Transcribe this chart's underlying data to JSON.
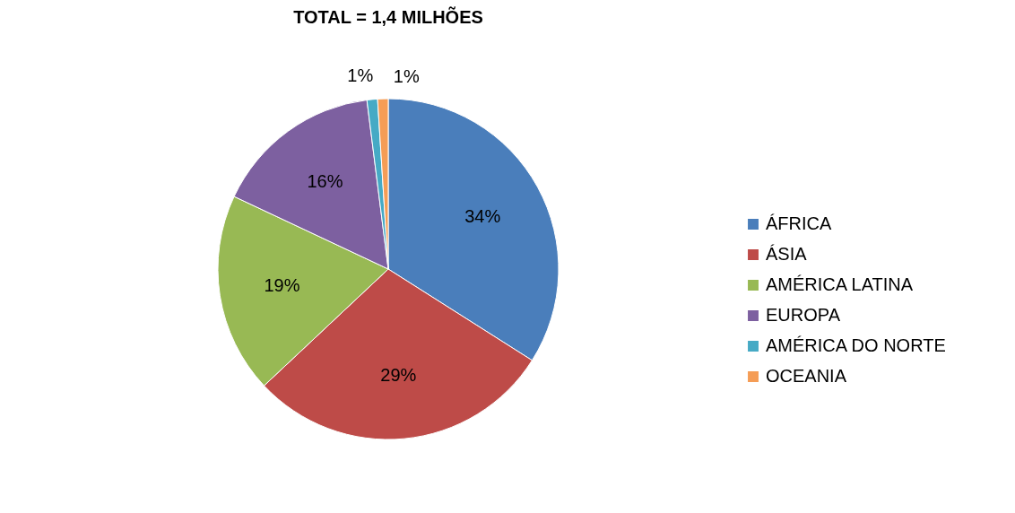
{
  "chart_data": {
    "type": "pie",
    "title": "TOTAL = 1,4 MILHÕES",
    "categories": [
      "ÁFRICA",
      "ÁSIA",
      "AMÉRICA LATINA",
      "EUROPA",
      "AMÉRICA DO NORTE",
      "OCEANIA"
    ],
    "values": [
      34,
      29,
      19,
      16,
      1,
      1
    ],
    "value_labels": [
      "34%",
      "29%",
      "19%",
      "16%",
      "1%",
      "1%"
    ],
    "colors": [
      "#4a7ebb",
      "#be4b48",
      "#98b954",
      "#7d60a0",
      "#46aac5",
      "#f59d56"
    ],
    "legend": "right"
  }
}
